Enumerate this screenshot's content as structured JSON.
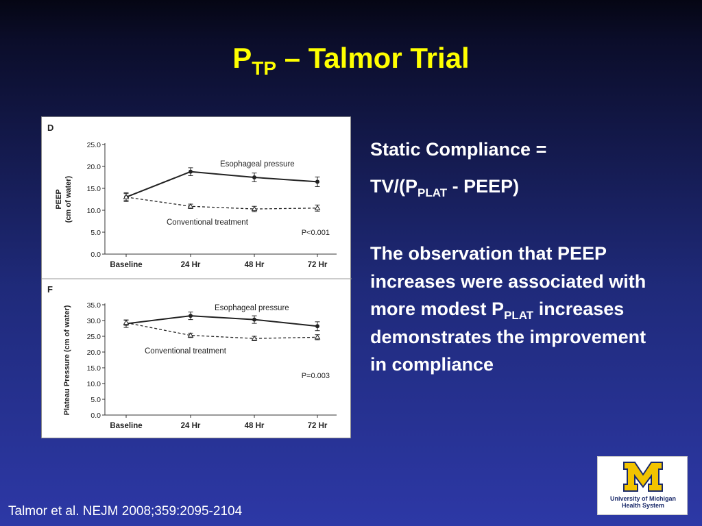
{
  "slide": {
    "title_main": "P",
    "title_sub": "TP",
    "title_rest": " – Talmor Trial",
    "formula_line1": "Static Compliance =",
    "formula_line2_a": "TV/(P",
    "formula_line2_sub": "PLAT",
    "formula_line2_b": " - PEEP)",
    "para_a": "The observation that PEEP increases were associated with more modest P",
    "para_sub": "PLAT",
    "para_b": " increases demonstrates the improvement in compliance",
    "citation": "Talmor et al. NEJM 2008;359:2095-2104",
    "logo_line1": "University of Michigan",
    "logo_line2": "Health System",
    "colors": {
      "title": "#ffff00",
      "text": "#ffffff",
      "logo_maize": "#f2c300",
      "logo_blue": "#1a2a6a"
    }
  },
  "chart_data": [
    {
      "type": "line",
      "panel_label": "D",
      "ylabel": "PEEP\n(cm of water)",
      "categories": [
        "Baseline",
        "24 Hr",
        "48 Hr",
        "72 Hr"
      ],
      "ylim": [
        0,
        25
      ],
      "yticks": [
        "0.0",
        "5.0",
        "10.0",
        "15.0",
        "20.0",
        "25.0"
      ],
      "series": [
        {
          "name": "Esophageal pressure",
          "values": [
            13.0,
            18.8,
            17.5,
            16.5
          ],
          "errors": [
            1.0,
            0.9,
            1.0,
            1.1
          ],
          "style": "solid",
          "marker": "dot"
        },
        {
          "name": "Conventional treatment",
          "values": [
            13.0,
            10.9,
            10.3,
            10.5
          ],
          "errors": [
            0.8,
            0.5,
            0.6,
            0.7
          ],
          "style": "dashed",
          "marker": "triangle"
        }
      ],
      "annotation": "P<0.001"
    },
    {
      "type": "line",
      "panel_label": "F",
      "ylabel": "Plateau Pressure (cm of water)",
      "categories": [
        "Baseline",
        "24 Hr",
        "48 Hr",
        "72 Hr"
      ],
      "ylim": [
        0,
        35
      ],
      "yticks": [
        "0.0",
        "5.0",
        "10.0",
        "15.0",
        "20.0",
        "25.0",
        "30.0",
        "35.0"
      ],
      "series": [
        {
          "name": "Esophageal pressure",
          "values": [
            29.0,
            31.5,
            30.3,
            28.2
          ],
          "errors": [
            1.2,
            1.2,
            1.2,
            1.4
          ],
          "style": "solid",
          "marker": "dot"
        },
        {
          "name": "Conventional treatment",
          "values": [
            29.3,
            25.3,
            24.3,
            24.7
          ],
          "errors": [
            0.8,
            0.7,
            0.7,
            0.8
          ],
          "style": "dashed",
          "marker": "triangle"
        }
      ],
      "annotation": "P=0.003"
    }
  ]
}
